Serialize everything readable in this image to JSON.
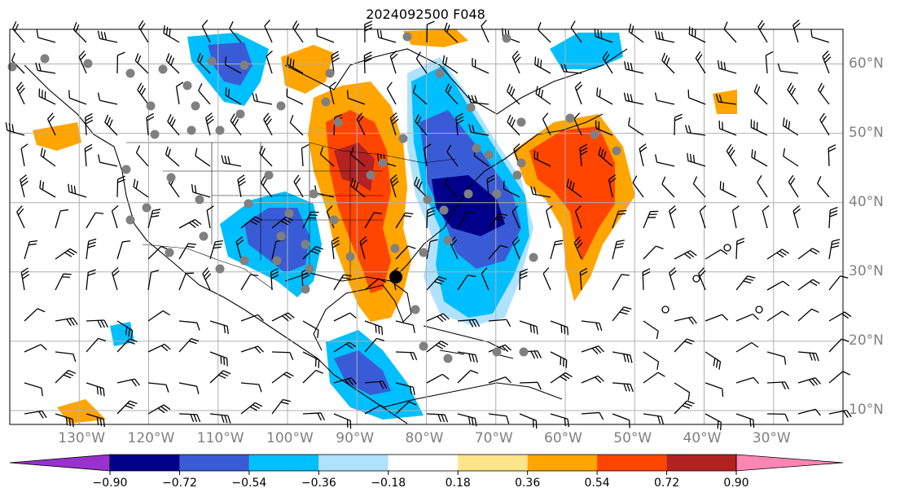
{
  "title": "2024092500 F048",
  "lat_labels": [
    "60°N",
    "50°N",
    "40°N",
    "30°N",
    "20°N",
    "10°N"
  ],
  "lon_labels": [
    "130°W",
    "120°W",
    "110°W",
    "100°W",
    "90°W",
    "80°W",
    "70°W",
    "60°W",
    "50°W",
    "40°W",
    "30°W"
  ],
  "colorbar": {
    "ticks": [
      "−0.90",
      "−0.72",
      "−0.54",
      "−0.36",
      "−0.18",
      "0.18",
      "0.36",
      "0.54",
      "0.72",
      "0.90"
    ],
    "colors": [
      "#9932cc",
      "#00008b",
      "#3a5bd6",
      "#00bfff",
      "#b0e2ff",
      "#ffffff",
      "#fde68a",
      "#ffa500",
      "#ff4500",
      "#b22222",
      "#ff85b3"
    ]
  },
  "map": {
    "lon_range": [
      -140,
      -20
    ],
    "lat_range": [
      8,
      65
    ],
    "colors": {
      "neg_strong": "#00008b",
      "neg_mid": "#3a5bd6",
      "neg_light": "#00bfff",
      "neg_faint": "#b0e2ff",
      "pos_faint": "#fde68a",
      "pos_light": "#ffa500",
      "pos_mid": "#ff4500",
      "pos_strong": "#b22222",
      "stations": "#808080",
      "grid": "#b0b0b0"
    }
  }
}
